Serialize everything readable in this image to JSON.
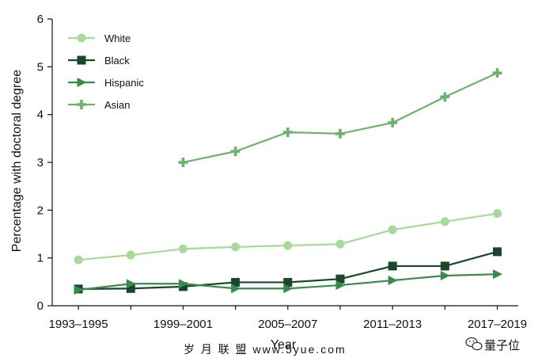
{
  "chart_data": {
    "type": "line",
    "title": "",
    "xlabel": "Year",
    "ylabel": "Percentage with doctoral degree",
    "ylim": [
      0,
      6
    ],
    "yticks": [
      0,
      1,
      2,
      3,
      4,
      5,
      6
    ],
    "x_tick_labels": [
      "1993–1995",
      "1999–2001",
      "2005–2007",
      "2011–2013",
      "2017–2019"
    ],
    "x_tick_positions": [
      0,
      2,
      4,
      6,
      8
    ],
    "x_range": [
      -0.5,
      8.4
    ],
    "grid": false,
    "legend_position": "top-left",
    "series": [
      {
        "name": "White",
        "marker": "circle",
        "color": "#a8d89a",
        "x": [
          0,
          1,
          2,
          3,
          4,
          5,
          6,
          7,
          8
        ],
        "values": [
          0.96,
          1.06,
          1.19,
          1.23,
          1.26,
          1.29,
          1.59,
          1.76,
          1.93
        ]
      },
      {
        "name": "Black",
        "marker": "square",
        "color": "#18472a",
        "x": [
          0,
          1,
          2,
          3,
          4,
          5,
          6,
          7,
          8
        ],
        "values": [
          0.35,
          0.36,
          0.4,
          0.49,
          0.49,
          0.56,
          0.83,
          0.83,
          1.13
        ]
      },
      {
        "name": "Hispanic",
        "marker": "triangle-right",
        "color": "#3a8a4c",
        "x": [
          0,
          1,
          2,
          3,
          4,
          5,
          6,
          7,
          8
        ],
        "values": [
          0.33,
          0.46,
          0.46,
          0.36,
          0.36,
          0.43,
          0.53,
          0.63,
          0.66
        ]
      },
      {
        "name": "Asian",
        "marker": "plus",
        "color": "#6bb36d",
        "x": [
          2,
          3,
          4,
          5,
          6,
          7,
          8
        ],
        "values": [
          3.0,
          3.23,
          3.63,
          3.6,
          3.83,
          4.37,
          4.87
        ]
      }
    ]
  },
  "watermark": {
    "left_text": "岁 月 联 盟  www.5yue.com",
    "right_text": "量子位",
    "right_icon": "wechat-icon"
  }
}
